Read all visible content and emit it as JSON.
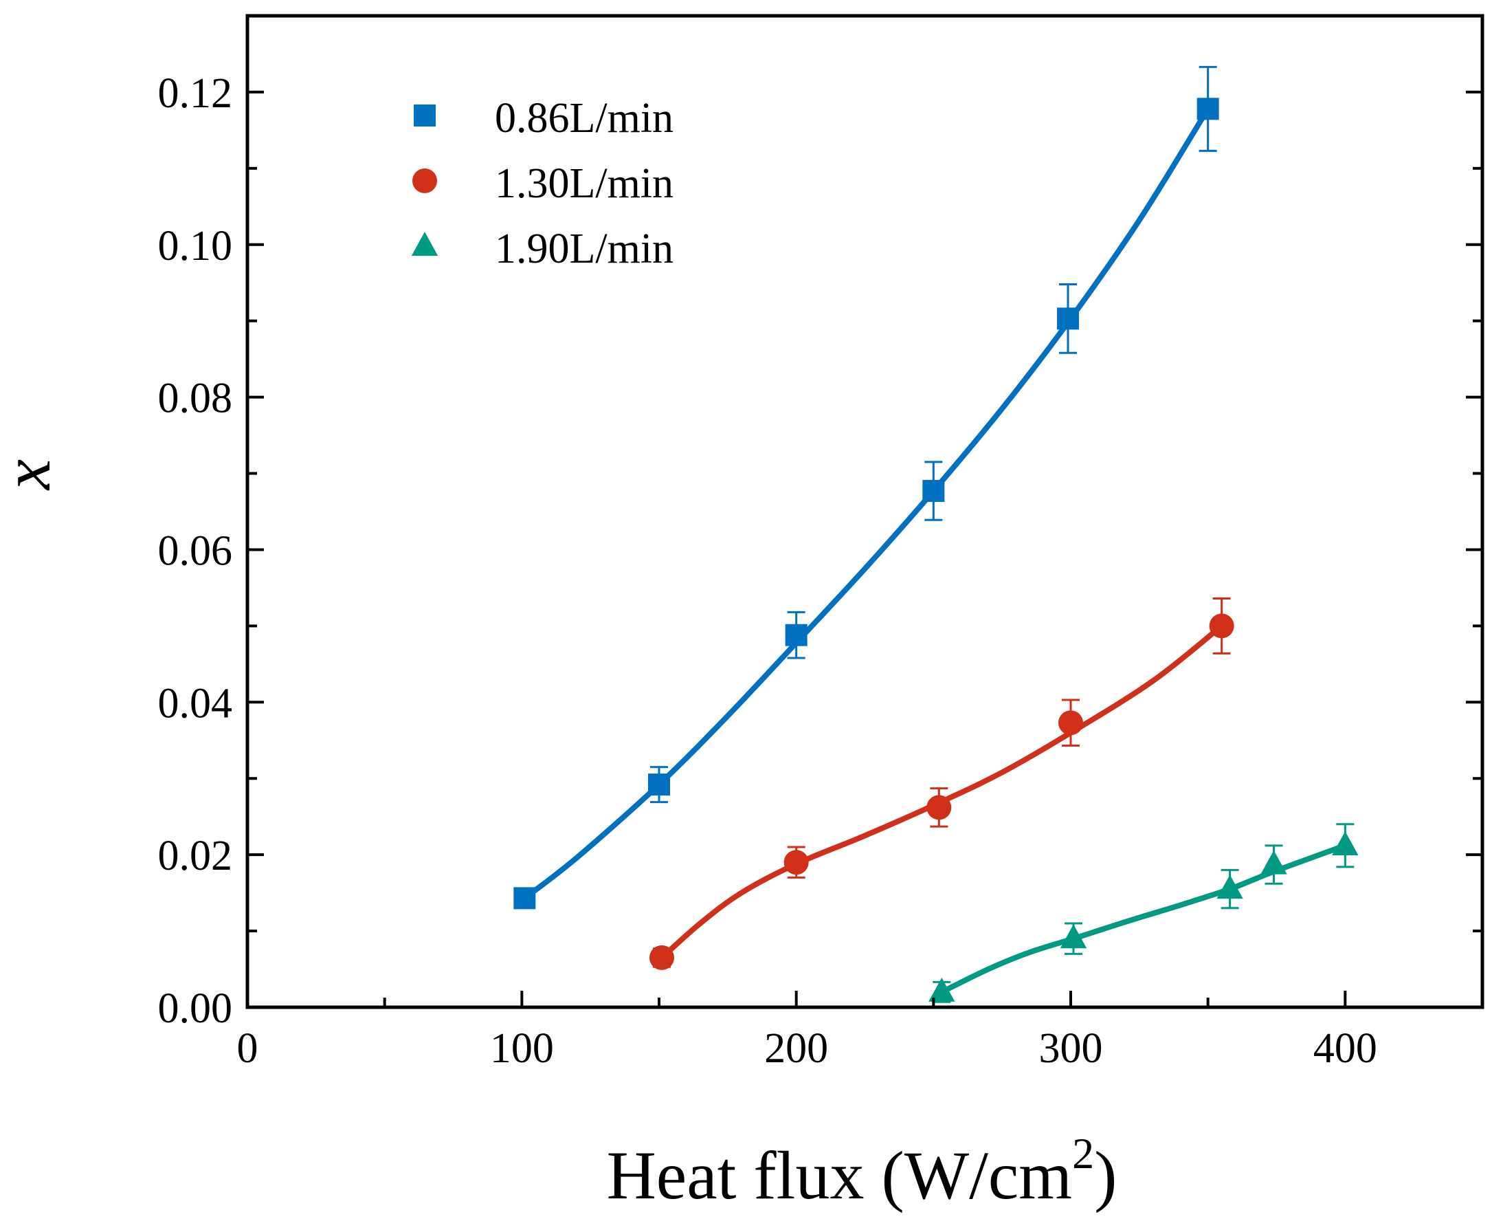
{
  "chart_data": {
    "type": "scatter",
    "title": "",
    "xlabel_main": "Heat flux (W/cm",
    "xlabel_sup": "2",
    "xlabel_close": ")",
    "ylabel": "x",
    "xlim": [
      0,
      450
    ],
    "ylim": [
      0,
      0.13
    ],
    "xticks": [
      0,
      100,
      200,
      300,
      400
    ],
    "xtick_labels": [
      "0",
      "100",
      "200",
      "300",
      "400"
    ],
    "xminor": [
      50,
      150,
      250,
      350
    ],
    "yticks": [
      0,
      0.02,
      0.04,
      0.06,
      0.08,
      0.1,
      0.12
    ],
    "ytick_labels": [
      "0.00",
      "0.02",
      "0.04",
      "0.06",
      "0.08",
      "0.10",
      "0.12"
    ],
    "yminor": [
      0.01,
      0.03,
      0.05,
      0.07,
      0.09,
      0.11
    ],
    "legend_position": "top-left",
    "series": [
      {
        "name": "0.86L/min",
        "marker": "square",
        "color": "#0070C0",
        "x": [
          101,
          150,
          200,
          250,
          299,
          350
        ],
        "y": [
          0.0143,
          0.0292,
          0.0488,
          0.0677,
          0.0903,
          0.1178
        ],
        "err": [
          0.0,
          0.0023,
          0.003,
          0.0038,
          0.0045,
          0.0055
        ],
        "fit_x": [
          101,
          120,
          150,
          175,
          200,
          225,
          250,
          275,
          299,
          325,
          350
        ],
        "fit_y": [
          0.0143,
          0.0196,
          0.0292,
          0.0382,
          0.0478,
          0.0575,
          0.0677,
          0.0785,
          0.0898,
          0.1032,
          0.1178
        ]
      },
      {
        "name": "1.30L/min",
        "marker": "circle",
        "color": "#D0301A",
        "x": [
          151,
          200,
          252,
          300,
          355
        ],
        "y": [
          0.0065,
          0.019,
          0.0262,
          0.0373,
          0.05
        ],
        "err": [
          0.0012,
          0.002,
          0.0025,
          0.003,
          0.0036
        ],
        "fit_x": [
          151,
          165,
          180,
          200,
          225,
          252,
          275,
          300,
          330,
          355
        ],
        "fit_y": [
          0.0065,
          0.011,
          0.015,
          0.0188,
          0.0225,
          0.0268,
          0.0308,
          0.036,
          0.0428,
          0.05
        ]
      },
      {
        "name": "1.90L/min",
        "marker": "triangle",
        "color": "#009A82",
        "x": [
          253,
          301,
          358,
          374,
          400
        ],
        "y": [
          0.002,
          0.009,
          0.0155,
          0.0187,
          0.0212
        ],
        "err": [
          0.0013,
          0.002,
          0.0025,
          0.0025,
          0.0028
        ],
        "fit_x": [
          253,
          270,
          285,
          301,
          320,
          340,
          358,
          374,
          400
        ],
        "fit_y": [
          0.002,
          0.005,
          0.0072,
          0.009,
          0.0112,
          0.0134,
          0.0155,
          0.0178,
          0.0212
        ]
      }
    ]
  }
}
